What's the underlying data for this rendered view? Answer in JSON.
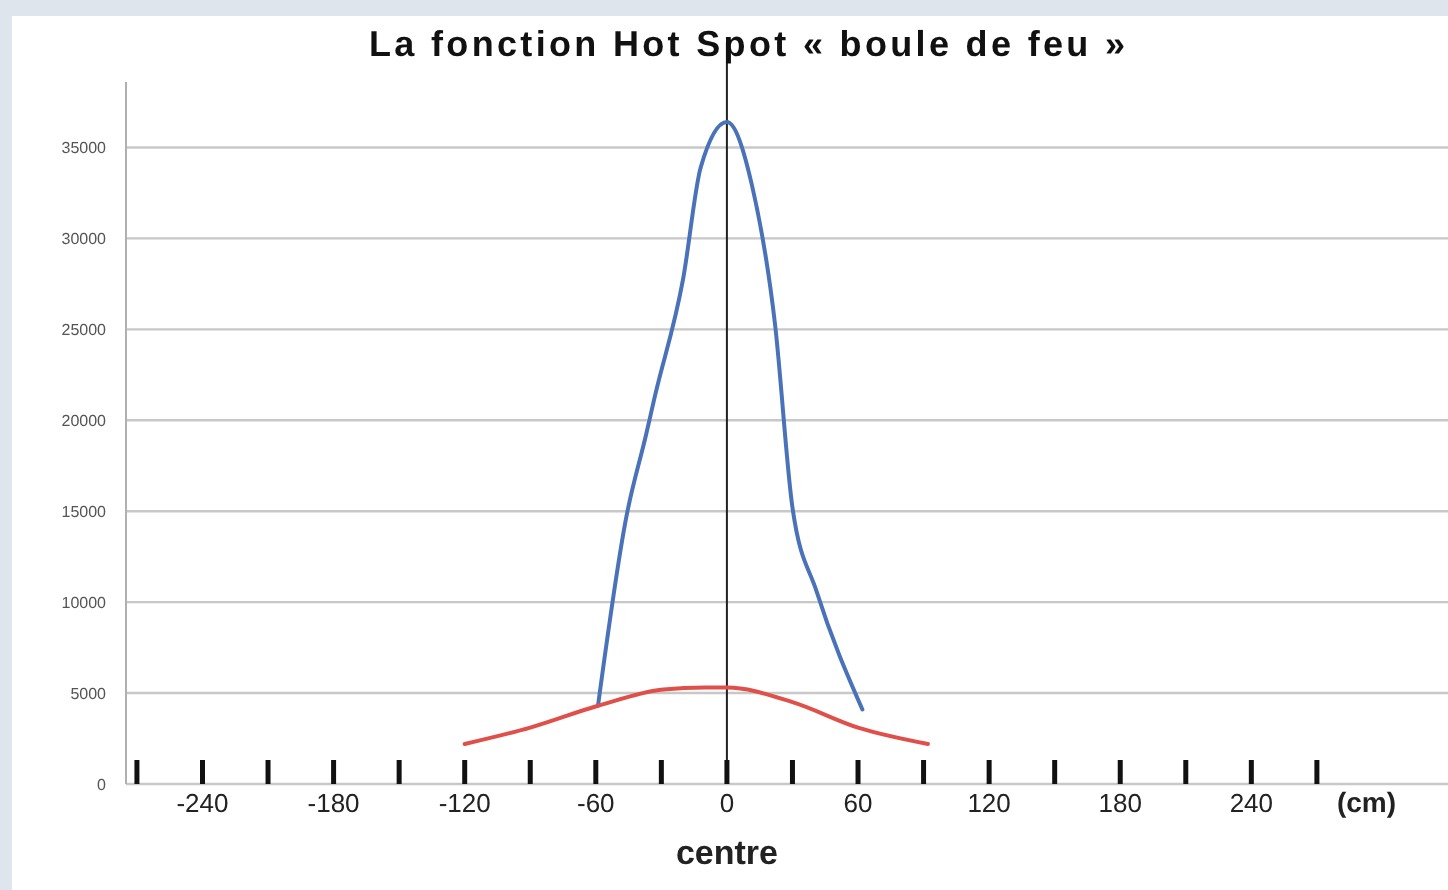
{
  "chart_data": {
    "type": "line",
    "title": "La fonction Hot Spot « boule de feu »",
    "xlabel": "(cm)",
    "series": [
      {
        "color": "#4a72b8",
        "x": [
          -59,
          -46,
          -37,
          -33,
          -20,
          -12,
          0,
          11.5,
          22,
          30,
          41,
          62
        ],
        "values": [
          4300,
          14700,
          19200,
          21300,
          27800,
          33900,
          36400,
          32900,
          25300,
          15200,
          10600,
          4100
        ]
      },
      {
        "color": "#e0504a",
        "x": [
          -120,
          -90,
          -59,
          -29,
          -10,
          0,
          30,
          60,
          92
        ],
        "values": [
          2200,
          3100,
          4300,
          5200,
          5300,
          5300,
          4500,
          3100,
          2200
        ]
      }
    ],
    "xlim": [
      -275,
      330
    ],
    "ylim": [
      0,
      38600
    ],
    "xticks": [
      {
        "value": -270,
        "label": null
      },
      -240,
      {
        "value": -210,
        "label": null
      },
      -180,
      {
        "value": -150,
        "label": null
      },
      -120,
      {
        "value": -90,
        "label": null
      },
      -60,
      {
        "value": -30,
        "label": null
      },
      0,
      {
        "value": 30,
        "label": null
      },
      60,
      {
        "value": 90,
        "label": null
      },
      120,
      {
        "value": 150,
        "label": null
      },
      180,
      {
        "value": 210,
        "label": null
      },
      240,
      {
        "value": 270,
        "label": null
      }
    ],
    "yticks": [
      0,
      5000,
      10000,
      15000,
      20000,
      25000,
      30000,
      35000
    ],
    "grid": "y",
    "marker": "none",
    "line_style": "solid",
    "ref_lines": [
      {
        "axis": "x",
        "value": 0,
        "label": "centre",
        "color": "#222222"
      }
    ]
  }
}
